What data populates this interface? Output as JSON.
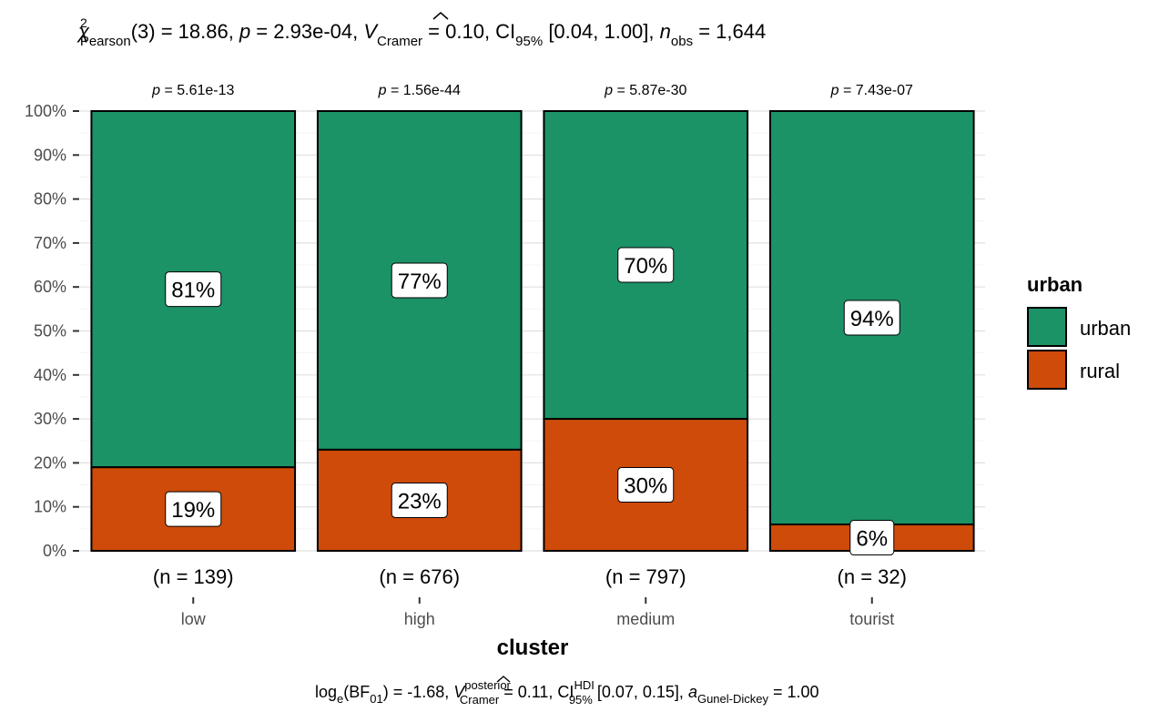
{
  "chart_data": {
    "type": "bar",
    "stacked": true,
    "percent": true,
    "xlabel": "cluster",
    "ylabel": "",
    "ylim": [
      0,
      100
    ],
    "yticks": [
      "0%",
      "10%",
      "20%",
      "30%",
      "40%",
      "50%",
      "60%",
      "70%",
      "80%",
      "90%",
      "100%"
    ],
    "categories": [
      "low",
      "high",
      "medium",
      "tourist"
    ],
    "counts": [
      "(n = 139)",
      "(n = 676)",
      "(n = 797)",
      "(n = 32)"
    ],
    "pvalues": [
      "5.61e-13",
      "1.56e-44",
      "5.87e-30",
      "7.43e-07"
    ],
    "series": [
      {
        "name": "urban",
        "values": [
          81,
          77,
          70,
          94
        ],
        "labels": [
          "81%",
          "77%",
          "70%",
          "94%"
        ],
        "color": "#1c9267"
      },
      {
        "name": "rural",
        "values": [
          19,
          23,
          30,
          6
        ],
        "labels": [
          "19%",
          "23%",
          "30%",
          "6%"
        ],
        "color": "#ce4b0a"
      }
    ],
    "legend": {
      "title": "urban",
      "position": "right"
    },
    "grid": true
  },
  "subtitle": {
    "chi": "χ",
    "chi_sup": "2",
    "chi_sub": "Pearson",
    "df_part": "(3) = 18.86, ",
    "p_sym": "p",
    "p_part": " = 2.93e-04, ",
    "v_sym": "V",
    "v_sub": "Cramer",
    "v_part": " = 0.10, CI",
    "ci_sub": "95%",
    "ci_part": " [0.04, 1.00], ",
    "n_sym": "n",
    "n_sub": "obs",
    "n_part": " = 1,644"
  },
  "p_prefix": "p",
  "p_eq": " = ",
  "caption": {
    "log": "log",
    "log_sub": "e",
    "bf": "(BF",
    "bf_sub": "01",
    "bf_close": ")",
    "bf_val": " = -1.68, ",
    "v_sym": "V",
    "v_sup": "posterior",
    "v_sub": "Cramer",
    "v_val": " = 0.11, CI",
    "ci_sup": "HDI",
    "ci_sub": "95%",
    "ci_val": " [0.07, 0.15], ",
    "a_sym": "a",
    "a_sub": "Gunel-Dickey",
    "a_val": " = 1.00"
  }
}
